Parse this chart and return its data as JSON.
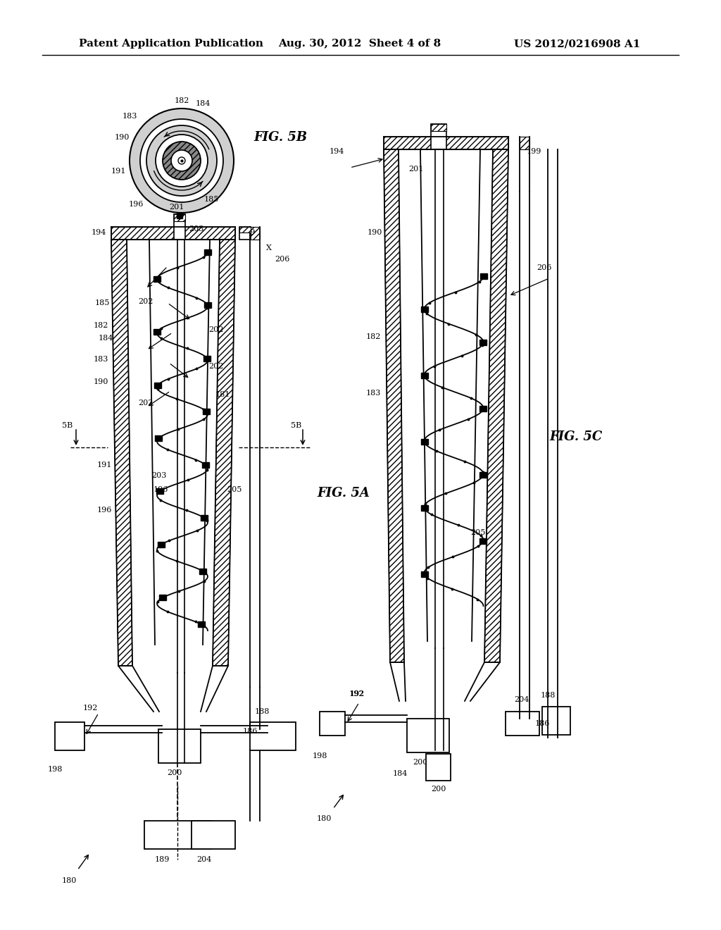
{
  "title_left": "Patent Application Publication",
  "title_mid": "Aug. 30, 2012  Sheet 4 of 8",
  "title_right": "US 2012/0216908 A1",
  "fig5a_label": "FIG. 5A",
  "fig5b_label": "FIG. 5B",
  "fig5c_label": "FIG. 5C",
  "bg_color": "#ffffff",
  "line_color": "#000000",
  "font_size_header": 11,
  "font_size_label": 8,
  "font_size_fig": 13
}
